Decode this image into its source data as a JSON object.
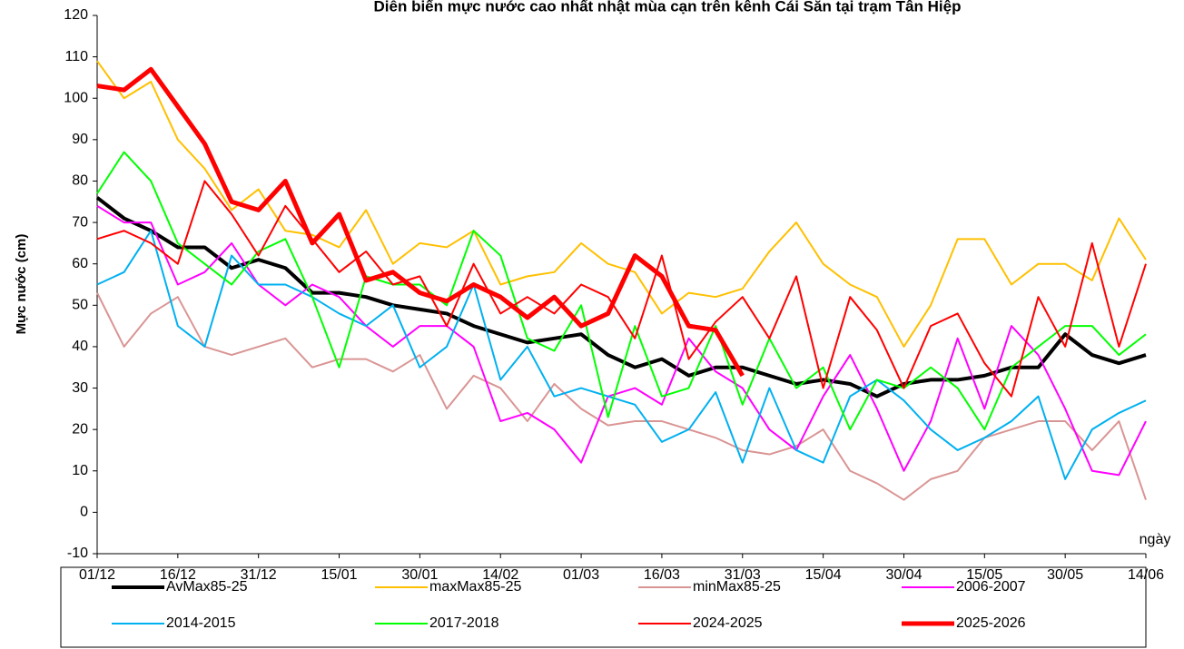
{
  "chart_data": {
    "type": "line",
    "title": "Diễn biến mực nước cao nhất nhật mùa cạn trên kênh Cái Sắn tại trạm Tân Hiệp",
    "y_label": "Mực nước (cm)",
    "x_label": "ngày",
    "x": [
      0,
      5,
      10,
      15,
      20,
      25,
      30,
      35,
      40,
      45,
      50,
      55,
      60,
      65,
      70,
      75,
      80,
      85,
      90,
      95,
      100,
      105,
      110,
      115,
      120,
      125,
      130,
      135,
      140,
      145,
      150,
      155,
      160,
      165,
      170,
      175,
      180,
      185,
      190,
      195
    ],
    "xlim": [
      0,
      195
    ],
    "xticks": [
      {
        "value": 0,
        "label": "01/12"
      },
      {
        "value": 15,
        "label": "16/12"
      },
      {
        "value": 30,
        "label": "31/12"
      },
      {
        "value": 45,
        "label": "15/01"
      },
      {
        "value": 60,
        "label": "30/01"
      },
      {
        "value": 75,
        "label": "14/02"
      },
      {
        "value": 90,
        "label": "01/03"
      },
      {
        "value": 105,
        "label": "16/03"
      },
      {
        "value": 120,
        "label": "31/03"
      },
      {
        "value": 135,
        "label": "15/04"
      },
      {
        "value": 150,
        "label": "30/04"
      },
      {
        "value": 165,
        "label": "15/05"
      },
      {
        "value": 180,
        "label": "30/05"
      },
      {
        "value": 195,
        "label": "14/06"
      }
    ],
    "ylim": [
      -10,
      120
    ],
    "yticks": [
      -10,
      0,
      10,
      20,
      30,
      40,
      50,
      60,
      70,
      80,
      90,
      100,
      110,
      120
    ],
    "series": [
      {
        "name": "AvMax85-25",
        "color": "#000000",
        "values": [
          76,
          71,
          68,
          64,
          64,
          59,
          61,
          59,
          53,
          53,
          52,
          50,
          49,
          48,
          45,
          43,
          41,
          42,
          43,
          38,
          35,
          37,
          33,
          35,
          35,
          33,
          31,
          32,
          31,
          28,
          31,
          32,
          32,
          33,
          35,
          35,
          43,
          38,
          36,
          38
        ]
      },
      {
        "name": "maxMax85-25",
        "color": "#ffc000",
        "values": [
          109,
          100,
          104,
          90,
          83,
          73,
          78,
          68,
          67,
          64,
          73,
          60,
          65,
          64,
          68,
          55,
          57,
          58,
          65,
          60,
          58,
          48,
          53,
          52,
          54,
          63,
          70,
          60,
          55,
          52,
          40,
          50,
          66,
          66,
          55,
          60,
          60,
          56,
          71,
          61
        ]
      },
      {
        "name": "minMax85-25",
        "color": "#d99594",
        "values": [
          53,
          40,
          48,
          52,
          40,
          38,
          40,
          42,
          35,
          37,
          37,
          34,
          38,
          25,
          33,
          30,
          22,
          31,
          25,
          21,
          22,
          22,
          20,
          18,
          15,
          14,
          16,
          20,
          10,
          7,
          3,
          8,
          10,
          18,
          20,
          22,
          22,
          15,
          22,
          3
        ]
      },
      {
        "name": "2006-2007",
        "color": "#ff00ff",
        "values": [
          74,
          70,
          70,
          55,
          58,
          65,
          55,
          50,
          55,
          52,
          45,
          40,
          45,
          45,
          40,
          22,
          24,
          20,
          12,
          28,
          30,
          26,
          42,
          34,
          30,
          20,
          15,
          28,
          38,
          25,
          10,
          22,
          42,
          25,
          45,
          38,
          25,
          10,
          9,
          22
        ]
      },
      {
        "name": "2014-2015",
        "color": "#00b0f0",
        "values": [
          55,
          58,
          68,
          45,
          40,
          62,
          55,
          55,
          52,
          48,
          45,
          50,
          35,
          40,
          55,
          32,
          40,
          28,
          30,
          28,
          26,
          17,
          20,
          29,
          12,
          30,
          15,
          12,
          28,
          32,
          27,
          20,
          15,
          18,
          22,
          28,
          8,
          20,
          24,
          27
        ]
      },
      {
        "name": "2017-2018",
        "color": "#00ff00",
        "values": [
          77,
          87,
          80,
          65,
          60,
          55,
          63,
          66,
          52,
          35,
          57,
          55,
          55,
          50,
          68,
          62,
          42,
          39,
          50,
          23,
          45,
          28,
          30,
          45,
          26,
          42,
          30,
          35,
          20,
          32,
          30,
          35,
          30,
          20,
          35,
          40,
          45,
          45,
          38,
          43
        ]
      },
      {
        "name": "2024-2025",
        "color": "#ff0000",
        "values": [
          66,
          68,
          65,
          60,
          80,
          72,
          62,
          74,
          66,
          58,
          63,
          55,
          57,
          45,
          60,
          48,
          52,
          48,
          55,
          52,
          42,
          62,
          37,
          46,
          52,
          42,
          57,
          30,
          52,
          44,
          30,
          45,
          48,
          36,
          28,
          52,
          40,
          65,
          40,
          60
        ]
      },
      {
        "name": "2025-2026",
        "color": "#ff0000",
        "values": [
          103,
          102,
          107,
          98,
          89,
          75,
          73,
          80,
          65,
          72,
          56,
          58,
          53,
          51,
          55,
          52,
          47,
          52,
          45,
          48,
          62,
          57,
          45,
          44,
          33,
          null,
          null,
          null,
          null,
          null,
          null,
          null,
          null,
          null,
          null,
          null,
          null,
          null,
          null,
          null
        ]
      }
    ]
  }
}
